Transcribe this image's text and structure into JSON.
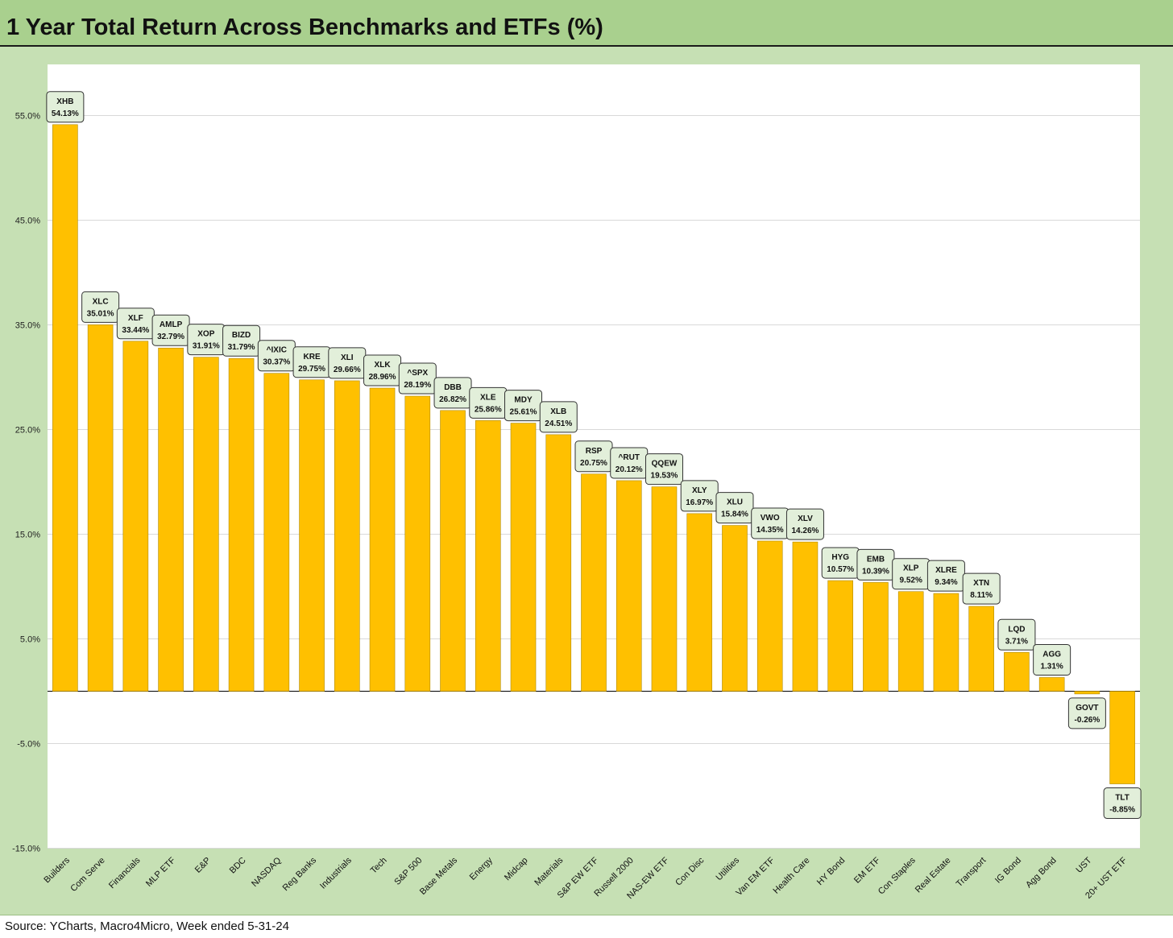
{
  "title": "1 Year Total Return Across Benchmarks and ETFs (%)",
  "source": "Source: YCharts, Macro4Micro, Week ended 5-31-24",
  "colors": {
    "bar": "#ffc000",
    "bar_stroke": "#b08a00",
    "label_box": "#e2efda",
    "background": "#c6e0b4",
    "title_bar": "#a9d08e",
    "plot_area": "#ffffff",
    "grid": "#d9d9d9"
  },
  "chart_data": {
    "type": "bar",
    "title": "1 Year Total Return Across Benchmarks and ETFs (%)",
    "xlabel": "",
    "ylabel": "",
    "ylim": [
      -15,
      60
    ],
    "yticks": [
      {
        "value": 55,
        "label": "55.0%"
      },
      {
        "value": 45,
        "label": "45.0%"
      },
      {
        "value": 35,
        "label": "35.0%"
      },
      {
        "value": 25,
        "label": "25.0%"
      },
      {
        "value": 15,
        "label": "15.0%"
      },
      {
        "value": 5,
        "label": "5.0%"
      },
      {
        "value": -5,
        "label": "-5.0%"
      },
      {
        "value": -15,
        "label": "-15.0%"
      }
    ],
    "grid": true,
    "categories": [
      "Builders",
      "Com Serve",
      "Financials",
      "MLP ETF",
      "E&P",
      "BDC",
      "NASDAQ",
      "Reg Banks",
      "Industrials",
      "Tech",
      "S&P 500",
      "Base Metals",
      "Energy",
      "Midcap",
      "Materials",
      "S&P EW ETF",
      "Russell 2000",
      "NAS-EW ETF",
      "Con Disc",
      "Utilities",
      "Van EM ETF",
      "Health Care",
      "HY Bond",
      "EM ETF",
      "Con Staples",
      "Real Estate",
      "Transport",
      "IG Bond",
      "Agg Bond",
      "UST",
      "20+ UST ETF"
    ],
    "tickers": [
      "XHB",
      "XLC",
      "XLF",
      "AMLP",
      "XOP",
      "BIZD",
      "^IXIC",
      "KRE",
      "XLI",
      "XLK",
      "^SPX",
      "DBB",
      "XLE",
      "MDY",
      "XLB",
      "RSP",
      "^RUT",
      "QQEW",
      "XLY",
      "XLU",
      "VWO",
      "XLV",
      "HYG",
      "EMB",
      "XLP",
      "XLRE",
      "XTN",
      "LQD",
      "AGG",
      "GOVT",
      "TLT"
    ],
    "values": [
      54.13,
      35.01,
      33.44,
      32.79,
      31.91,
      31.79,
      30.37,
      29.75,
      29.66,
      28.96,
      28.19,
      26.82,
      25.86,
      25.61,
      24.51,
      20.75,
      20.12,
      19.53,
      16.97,
      15.84,
      14.35,
      14.26,
      10.57,
      10.39,
      9.52,
      9.34,
      8.11,
      3.71,
      1.31,
      -0.26,
      -8.85
    ],
    "value_labels": [
      "54.13%",
      "35.01%",
      "33.44%",
      "32.79%",
      "31.91%",
      "31.79%",
      "30.37%",
      "29.75%",
      "29.66%",
      "28.96%",
      "28.19%",
      "26.82%",
      "25.86%",
      "25.61%",
      "24.51%",
      "20.75%",
      "20.12%",
      "19.53%",
      "16.97%",
      "15.84%",
      "14.35%",
      "14.26%",
      "10.57%",
      "10.39%",
      "9.52%",
      "9.34%",
      "8.11%",
      "3.71%",
      "1.31%",
      "-0.26%",
      "-8.85%"
    ]
  }
}
